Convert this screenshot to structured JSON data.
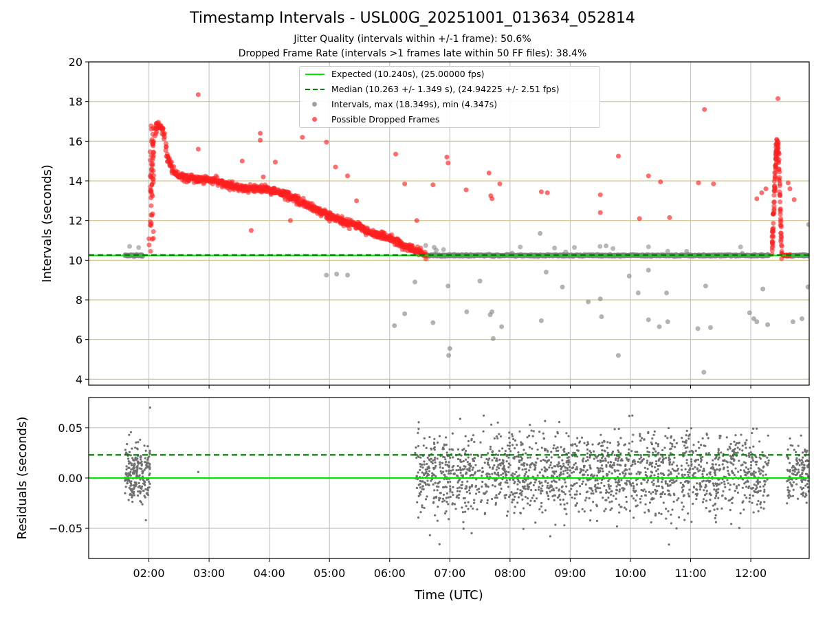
{
  "chart_data": [
    {
      "type": "scatter",
      "panel": "intervals",
      "title": "Timestamp Intervals - USL00G_20251001_013634_052814",
      "subtitle_1": "Jitter Quality (intervals within +/-1 frame): 50.6%",
      "subtitle_2": "Dropped Frame Rate (intervals >1 frames late within 50 FF files): 38.4%",
      "ylabel": "Intervals (seconds)",
      "ylim": [
        3.7,
        20
      ],
      "xlim_hours": [
        1.0,
        12.97
      ],
      "yticks": [
        4,
        6,
        8,
        10,
        12,
        14,
        16,
        18,
        20
      ],
      "ytick_labels": [
        "4",
        "6",
        "8",
        "10",
        "12",
        "14",
        "16",
        "18",
        "20"
      ],
      "grid": "horizontal gridlines (tan) and vertical gridlines (grey)",
      "legend_position": "top-center",
      "legend": [
        {
          "label": "Expected (10.240s), (25.00000 fps)",
          "style": "solid-line",
          "color": "#00e600"
        },
        {
          "label": "Median (10.263 +/- 1.349 s), (24.94225 +/- 2.51 fps)",
          "style": "dashed-line",
          "color": "#007a00"
        },
        {
          "label": "Intervals, max (18.349s), min (4.347s)",
          "style": "marker",
          "color": "#808080"
        },
        {
          "label": "Possible Dropped Frames",
          "style": "marker",
          "color": "#ff2020"
        }
      ],
      "expected_interval": 10.24,
      "median_interval": 10.263,
      "series": [
        {
          "name": "Possible Dropped Frames (trend)",
          "x_hours": [
            2.0,
            2.05,
            2.1,
            2.15,
            2.2,
            2.25,
            2.3,
            2.4,
            2.5,
            2.6,
            2.8,
            3.0,
            3.3,
            3.6,
            3.9,
            4.2,
            4.5,
            4.8,
            5.1,
            5.4,
            5.7,
            6.0,
            6.2,
            6.35,
            6.5,
            6.6,
            12.35,
            12.38,
            12.42,
            12.45,
            12.48,
            12.5,
            12.52
          ],
          "values": [
            10.6,
            14.0,
            16.7,
            16.8,
            16.7,
            16.4,
            15.2,
            14.5,
            14.3,
            14.2,
            14.1,
            14.1,
            13.8,
            13.6,
            13.6,
            13.4,
            13.0,
            12.5,
            12.1,
            11.8,
            11.4,
            11.1,
            10.8,
            10.6,
            10.4,
            10.25,
            10.8,
            12.5,
            15.5,
            16.0,
            14.0,
            11.5,
            10.4
          ]
        },
        {
          "name": "Possible Dropped Frames (outliers)",
          "x_hours": [
            2.82,
            2.82,
            3.85,
            3.85,
            3.7,
            3.55,
            3.9,
            4.1,
            4.35,
            4.55,
            4.95,
            5.1,
            5.3,
            5.45,
            6.1,
            6.25,
            6.45,
            6.72,
            6.95,
            6.97,
            7.27,
            7.65,
            7.68,
            7.7,
            7.83,
            8.52,
            8.62,
            9.5,
            9.5,
            9.8,
            10.15,
            10.3,
            10.5,
            10.65,
            11.13,
            11.23,
            11.38,
            12.1,
            12.18,
            12.25,
            12.45,
            12.65,
            12.72,
            12.62
          ],
          "values": [
            18.35,
            15.6,
            16.4,
            16.05,
            11.5,
            15.0,
            14.2,
            14.95,
            12.0,
            16.2,
            15.95,
            14.7,
            14.25,
            13.0,
            15.35,
            13.85,
            12.0,
            13.8,
            15.2,
            14.9,
            13.55,
            14.4,
            13.25,
            13.1,
            13.85,
            13.45,
            13.4,
            13.3,
            12.4,
            15.25,
            12.1,
            14.25,
            13.95,
            12.15,
            13.9,
            17.6,
            13.85,
            13.1,
            13.4,
            13.6,
            18.15,
            13.6,
            13.05,
            13.9
          ]
        },
        {
          "name": "Intervals (baseline)",
          "x_hours": [
            1.6,
            1.9,
            6.6,
            7.0,
            8.0,
            9.0,
            10.0,
            11.0,
            12.3,
            12.6,
            12.97
          ],
          "values": [
            10.24,
            10.24,
            10.24,
            10.24,
            10.24,
            10.24,
            10.24,
            10.24,
            10.24,
            10.24,
            10.24
          ]
        },
        {
          "name": "Intervals (outliers)",
          "x_hours": [
            4.95,
            5.12,
            5.3,
            6.08,
            6.25,
            6.42,
            6.72,
            6.97,
            6.98,
            7.0,
            7.28,
            7.5,
            7.67,
            7.7,
            7.72,
            7.86,
            8.5,
            8.52,
            8.6,
            8.87,
            9.3,
            9.5,
            9.52,
            9.8,
            9.98,
            10.13,
            10.3,
            10.3,
            10.48,
            10.6,
            10.62,
            11.12,
            11.22,
            11.25,
            11.33,
            11.98,
            12.05,
            12.1,
            12.2,
            12.28,
            12.7,
            12.85,
            12.95,
            12.96
          ],
          "values": [
            9.25,
            9.3,
            9.25,
            6.7,
            7.3,
            8.9,
            6.85,
            8.7,
            5.2,
            5.55,
            7.4,
            8.95,
            7.25,
            7.4,
            6.05,
            6.65,
            11.35,
            6.95,
            9.4,
            8.65,
            7.9,
            8.05,
            7.15,
            5.2,
            9.2,
            8.35,
            9.5,
            7.0,
            6.65,
            8.35,
            6.9,
            6.55,
            4.35,
            8.7,
            6.6,
            7.35,
            7.05,
            6.9,
            8.55,
            6.75,
            6.9,
            7.05,
            8.65,
            11.8
          ]
        }
      ]
    },
    {
      "type": "scatter",
      "panel": "residuals",
      "xlabel": "Time (UTC)",
      "ylabel": "Residuals (seconds)",
      "ylim": [
        -0.08,
        0.08
      ],
      "yticks": [
        -0.05,
        0.0,
        0.05
      ],
      "ytick_labels": [
        "−0.05",
        "0.00",
        "0.05"
      ],
      "xticks_hours": [
        2,
        3,
        4,
        5,
        6,
        7,
        8,
        9,
        10,
        11,
        12
      ],
      "xtick_labels": [
        "02:00",
        "03:00",
        "04:00",
        "05:00",
        "06:00",
        "07:00",
        "08:00",
        "09:00",
        "10:00",
        "11:00",
        "12:00"
      ],
      "expected_residual": 0.0,
      "median_residual": 0.023,
      "clusters": [
        {
          "x_range_hours": [
            1.6,
            2.02
          ],
          "mean": 0.005,
          "spread": 0.022,
          "approx_points": 220
        },
        {
          "x_range_hours": [
            6.42,
            12.3
          ],
          "mean": 0.005,
          "spread": 0.03,
          "approx_points": 1900
        },
        {
          "x_range_hours": [
            12.6,
            12.97
          ],
          "mean": 0.005,
          "spread": 0.022,
          "approx_points": 130
        }
      ],
      "single_points": [
        {
          "x_hours": 2.82,
          "value": 0.006
        },
        {
          "x_hours": 2.02,
          "value": 0.07
        },
        {
          "x_hours": 1.95,
          "value": -0.042
        }
      ]
    }
  ]
}
